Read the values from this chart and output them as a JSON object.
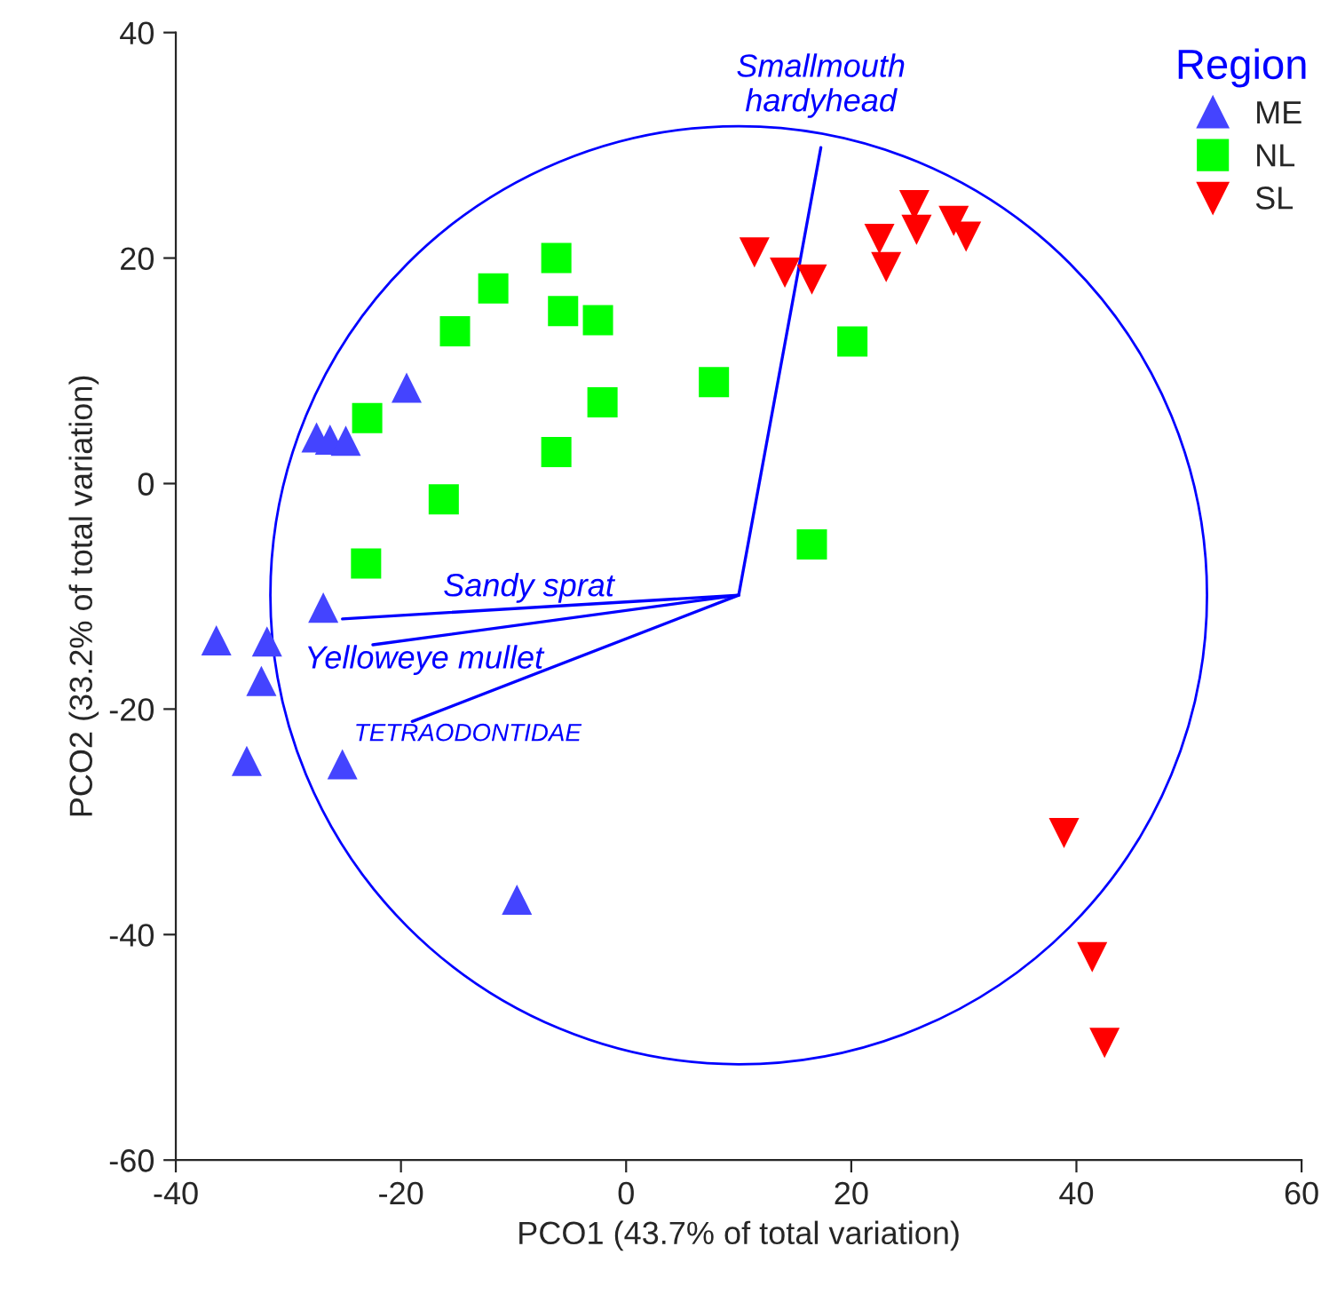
{
  "chart_data": {
    "type": "scatter",
    "xlabel": "PCO1 (43.7% of total variation)",
    "ylabel": "PCO2 (33.2% of total variation)",
    "legend_title": "Region",
    "legend": "top right",
    "grid": false,
    "xlim": [
      -40,
      60
    ],
    "xticks": [
      -40,
      -20,
      0,
      20,
      40,
      60
    ],
    "ylim": [
      -60,
      40
    ],
    "yticks": [
      -60,
      -40,
      -20,
      0,
      20,
      40
    ],
    "series": [
      {
        "name": "ME",
        "type": "scatter",
        "marker": "triangle",
        "color": "#4444ff",
        "x": [
          -27.5,
          -26.3,
          -24.9,
          -19.5,
          -26.9,
          -36.4,
          -31.9,
          -32.4,
          -33.7,
          -25.2,
          -9.7
        ],
        "values": [
          4.1,
          3.9,
          3.8,
          8.5,
          -11.0,
          -13.9,
          -14.0,
          -17.5,
          -24.6,
          -24.9,
          -36.9
        ]
      },
      {
        "name": "NL",
        "type": "scatter",
        "marker": "square",
        "color": "#00ff00",
        "x": [
          -6.2,
          -11.8,
          -15.2,
          -5.6,
          -2.5,
          -23.0,
          -2.1,
          -6.2,
          7.8,
          20.1,
          -16.2,
          -23.1,
          16.5
        ],
        "values": [
          20.0,
          17.3,
          13.5,
          15.3,
          14.5,
          5.8,
          7.2,
          2.8,
          9.0,
          12.6,
          -1.4,
          -7.1,
          -5.4
        ]
      },
      {
        "name": "SL",
        "type": "scatter",
        "marker": "triangle_down",
        "color": "#ff0000",
        "x": [
          11.4,
          14.1,
          16.5,
          22.5,
          25.6,
          25.8,
          23.1,
          29.1,
          30.2,
          38.9,
          41.4,
          42.5
        ],
        "values": [
          20.5,
          18.7,
          18.1,
          21.7,
          24.7,
          22.5,
          19.2,
          23.3,
          21.9,
          -31.0,
          -42.0,
          -49.6
        ]
      },
      {
        "name": "Smallmouth\nhardyhead",
        "type": "line",
        "color": "#0000ff",
        "x": [
          10.0,
          17.3
        ],
        "values": [
          -9.9,
          29.8
        ]
      },
      {
        "name": "Sandy sprat",
        "type": "line",
        "color": "#0000ff",
        "x": [
          10.0,
          -25.2
        ],
        "values": [
          -9.9,
          -12.0
        ]
      },
      {
        "name": "Yelloweye mullet",
        "type": "line",
        "color": "#0000ff",
        "x": [
          10.0,
          -22.5
        ],
        "values": [
          -9.9,
          -14.3
        ]
      },
      {
        "name": "TETRAODONTIDAE",
        "type": "line",
        "color": "#0000ff",
        "x": [
          10.0,
          -19.0
        ],
        "values": [
          -9.9,
          -21.1
        ]
      }
    ]
  }
}
